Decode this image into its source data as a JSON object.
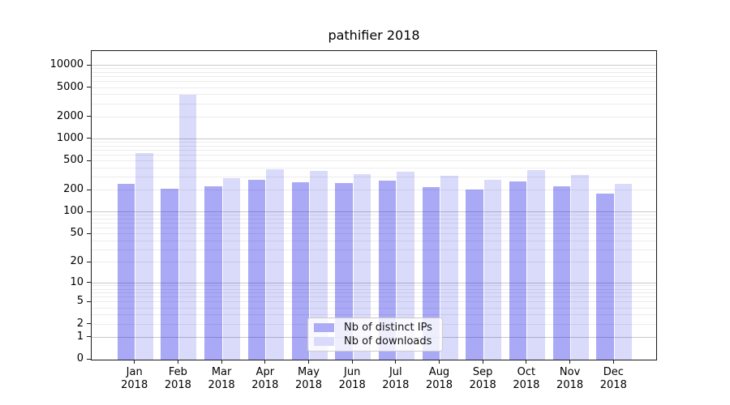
{
  "title": "pathifier 2018",
  "legend": {
    "items": [
      {
        "label": "Nb of distinct IPs",
        "color": "#acacf6"
      },
      {
        "label": "Nb of downloads",
        "color": "#dadafb"
      }
    ]
  },
  "chart_data": {
    "type": "bar",
    "title": "pathifier 2018",
    "categories": [
      "Jan",
      "Feb",
      "Mar",
      "Apr",
      "May",
      "Jun",
      "Jul",
      "Aug",
      "Sep",
      "Oct",
      "Nov",
      "Dec"
    ],
    "category_year": "2018",
    "series": [
      {
        "name": "Nb of distinct IPs",
        "color": "rgba(10,10,230,0.35)",
        "values": [
          240,
          205,
          222,
          272,
          250,
          247,
          264,
          215,
          202,
          260,
          223,
          178
        ]
      },
      {
        "name": "Nb of downloads",
        "color": "rgba(10,10,230,0.15)",
        "values": [
          635,
          3950,
          288,
          380,
          357,
          328,
          348,
          314,
          271,
          372,
          322,
          243
        ]
      }
    ],
    "xlabel": "",
    "ylabel": "",
    "y_ticks": [
      0,
      1,
      2,
      5,
      10,
      20,
      50,
      100,
      200,
      500,
      1000,
      2000,
      5000,
      10000
    ],
    "y_scale": "symlog-like (linear near 0, logarithmic above)",
    "ylim": [
      0,
      15000
    ],
    "grid": "horizontal, major (decades) and minor lines",
    "legend_position": "lower center"
  }
}
